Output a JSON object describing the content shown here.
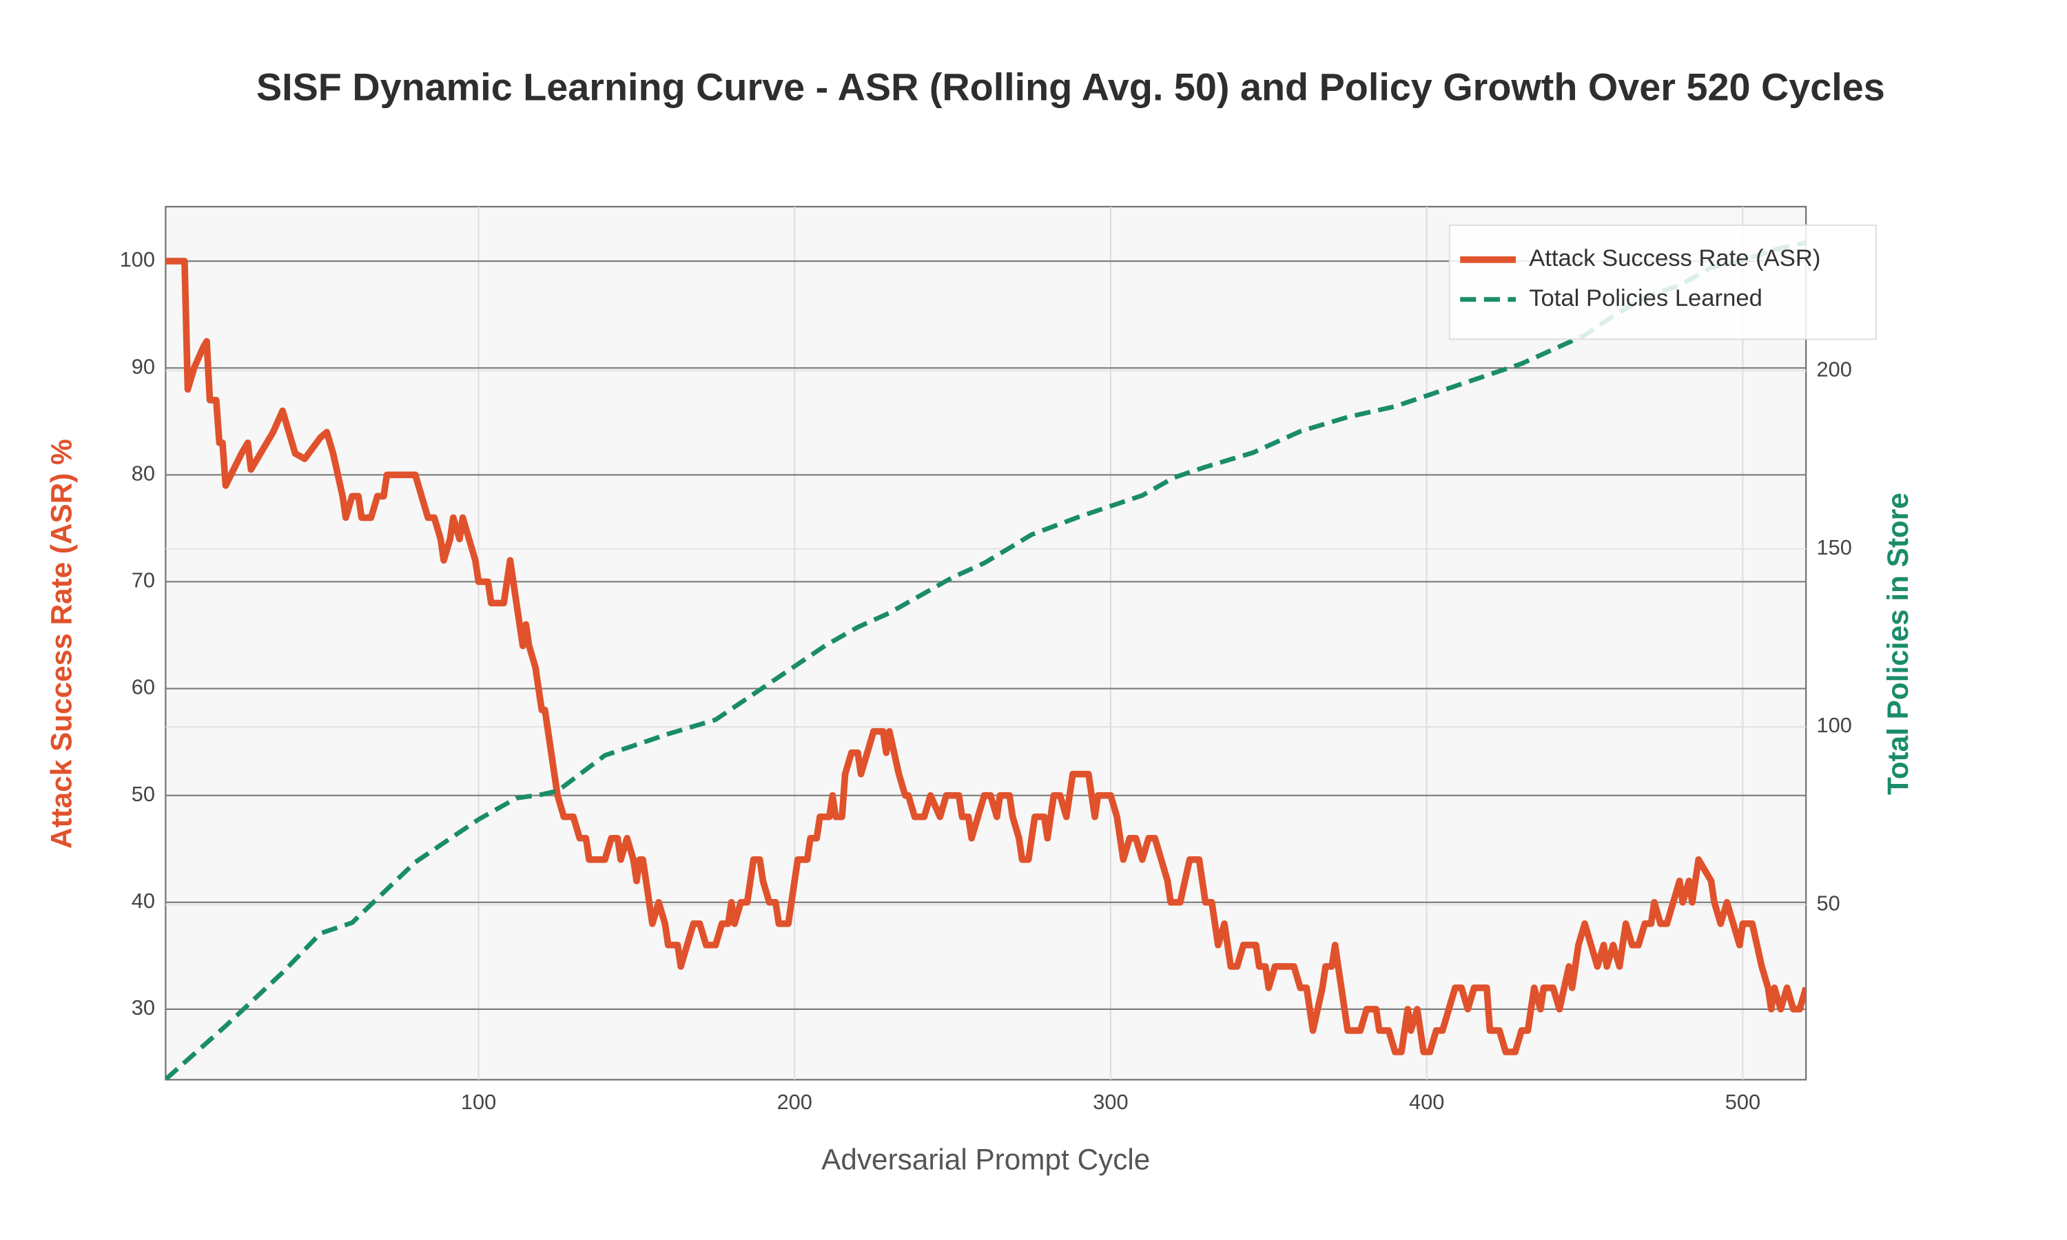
{
  "chart_data": {
    "type": "line",
    "title": "SISF Dynamic Learning Curve - ASR (Rolling Avg. 50) and Policy Growth Over 520 Cycles",
    "xlabel": "Adversarial Prompt Cycle",
    "ylabel": "Attack Success Rate (ASR) %",
    "y2label": "Total Policies in Store",
    "xlim": [
      1,
      520
    ],
    "xticks": [
      100,
      200,
      300,
      400,
      500
    ],
    "ylim": [
      23.4,
      105.1
    ],
    "yticks": [
      30,
      40,
      50,
      60,
      70,
      80,
      90,
      100
    ],
    "y2lim": [
      0.9,
      246.1
    ],
    "y2ticks": [
      50,
      100,
      150,
      200
    ],
    "grid": true,
    "legend": "upper right",
    "series": [
      {
        "name": "Attack Success Rate (ASR)",
        "color": "#e0522c",
        "dash": false,
        "x": [
          1,
          5,
          7,
          8,
          10,
          13,
          14,
          15,
          17,
          18,
          19,
          20,
          25,
          27,
          28,
          35,
          38,
          40,
          42,
          45,
          50,
          52,
          54,
          57,
          58,
          60,
          62,
          63,
          66,
          68,
          70,
          71,
          75,
          80,
          82,
          84,
          86,
          88,
          89,
          91,
          92,
          94,
          95,
          97,
          99,
          100,
          103,
          104,
          108,
          109,
          110,
          112,
          114,
          115,
          116,
          118,
          120,
          121,
          123,
          125,
          127,
          130,
          132,
          134,
          135,
          140,
          142,
          144,
          145,
          147,
          149,
          150,
          151,
          152,
          153,
          155,
          157,
          159,
          160,
          163,
          164,
          166,
          168,
          170,
          172,
          175,
          177,
          179,
          180,
          181,
          183,
          185,
          187,
          189,
          190,
          192,
          194,
          195,
          198,
          200,
          201,
          204,
          205,
          207,
          208,
          211,
          212,
          213,
          215,
          216,
          218,
          220,
          221,
          223,
          225,
          228,
          229,
          230,
          233,
          235,
          236,
          238,
          241,
          243,
          246,
          248,
          252,
          253,
          255,
          256,
          258,
          260,
          262,
          264,
          265,
          268,
          269,
          271,
          272,
          274,
          276,
          279,
          280,
          282,
          284,
          286,
          288,
          293,
          295,
          296,
          300,
          302,
          304,
          306,
          308,
          310,
          312,
          314,
          316,
          318,
          319,
          322,
          325,
          328,
          330,
          332,
          334,
          336,
          338,
          340,
          342,
          346,
          347,
          349,
          350,
          352,
          358,
          360,
          362,
          364,
          367,
          368,
          370,
          371,
          373,
          375,
          377,
          379,
          381,
          384,
          385,
          388,
          390,
          392,
          394,
          395,
          397,
          399,
          401,
          403,
          405,
          407,
          409,
          411,
          413,
          415,
          419,
          420,
          423,
          425,
          428,
          430,
          432,
          434,
          436,
          437,
          440,
          442,
          445,
          446,
          448,
          450,
          452,
          454,
          456,
          457,
          459,
          461,
          463,
          465,
          467,
          469,
          471,
          472,
          474,
          476,
          478,
          480,
          481,
          483,
          484,
          486,
          490,
          491,
          493,
          495,
          497,
          499,
          500,
          503,
          506,
          508,
          509,
          510,
          512,
          514,
          516,
          518,
          520
        ],
        "values": [
          100,
          100,
          100,
          88,
          90,
          92,
          92.5,
          87,
          87,
          83,
          83,
          79,
          82,
          83,
          80.5,
          84,
          86,
          84,
          82,
          81.5,
          83.5,
          84,
          82,
          78,
          76,
          78,
          78,
          76,
          76,
          78,
          78,
          80,
          80,
          80,
          78,
          76,
          76,
          74,
          72,
          74,
          76,
          74,
          76,
          74,
          72,
          70,
          70,
          68,
          68,
          70,
          72,
          68,
          64,
          66,
          64,
          62,
          58,
          58,
          54,
          50,
          48,
          48,
          46,
          46,
          44,
          44,
          46,
          46,
          44,
          46,
          44,
          42,
          44,
          44,
          42,
          38,
          40,
          38,
          36,
          36,
          34,
          36,
          38,
          38,
          36,
          36,
          38,
          38,
          40,
          38,
          40,
          40,
          44,
          44,
          42,
          40,
          40,
          38,
          38,
          42,
          44,
          44,
          46,
          46,
          48,
          48,
          50,
          48,
          48,
          52,
          54,
          54,
          52,
          54,
          56,
          56,
          54,
          56,
          52,
          50,
          50,
          48,
          48,
          50,
          48,
          50,
          50,
          48,
          48,
          46,
          48,
          50,
          50,
          48,
          50,
          50,
          48,
          46,
          44,
          44,
          48,
          48,
          46,
          50,
          50,
          48,
          52,
          52,
          48,
          50,
          50,
          48,
          44,
          46,
          46,
          44,
          46,
          46,
          44,
          42,
          40,
          40,
          44,
          44,
          40,
          40,
          36,
          38,
          34,
          34,
          36,
          36,
          34,
          34,
          32,
          34,
          34,
          32,
          32,
          28,
          32,
          34,
          34,
          36,
          32,
          28,
          28,
          28,
          30,
          30,
          28,
          28,
          26,
          26,
          30,
          28,
          30,
          26,
          26,
          28,
          28,
          30,
          32,
          32,
          30,
          32,
          32,
          28,
          28,
          26,
          26,
          28,
          28,
          32,
          30,
          32,
          32,
          30,
          34,
          32,
          36,
          38,
          36,
          34,
          36,
          34,
          36,
          34,
          38,
          36,
          36,
          38,
          38,
          40,
          38,
          38,
          40,
          42,
          40,
          42,
          40,
          44,
          42,
          40,
          38,
          40,
          38,
          36,
          38,
          38,
          34,
          32,
          30,
          32,
          30,
          32,
          30,
          30,
          32
        ]
      },
      {
        "name": "Total Policies Learned",
        "color": "#1a8c6a",
        "dash": true,
        "axis": "y2",
        "x": [
          1,
          20,
          38,
          50,
          60,
          80,
          100,
          112,
          120,
          125,
          140,
          150,
          160,
          175,
          190,
          200,
          210,
          220,
          230,
          240,
          250,
          260,
          275,
          290,
          300,
          310,
          320,
          330,
          345,
          360,
          375,
          390,
          400,
          410,
          420,
          430,
          440,
          450,
          460,
          470,
          480,
          490,
          500,
          510,
          520
        ],
        "values": [
          1,
          16,
          31,
          42,
          45,
          62,
          74,
          80,
          81,
          82,
          92,
          95,
          98,
          102,
          111,
          117,
          123,
          128,
          132,
          137,
          142,
          146,
          154,
          159,
          162,
          165,
          170,
          173,
          177,
          183,
          187,
          190,
          193,
          196,
          199,
          202,
          206,
          210,
          216,
          221,
          224,
          229,
          231,
          234,
          236
        ]
      }
    ]
  }
}
